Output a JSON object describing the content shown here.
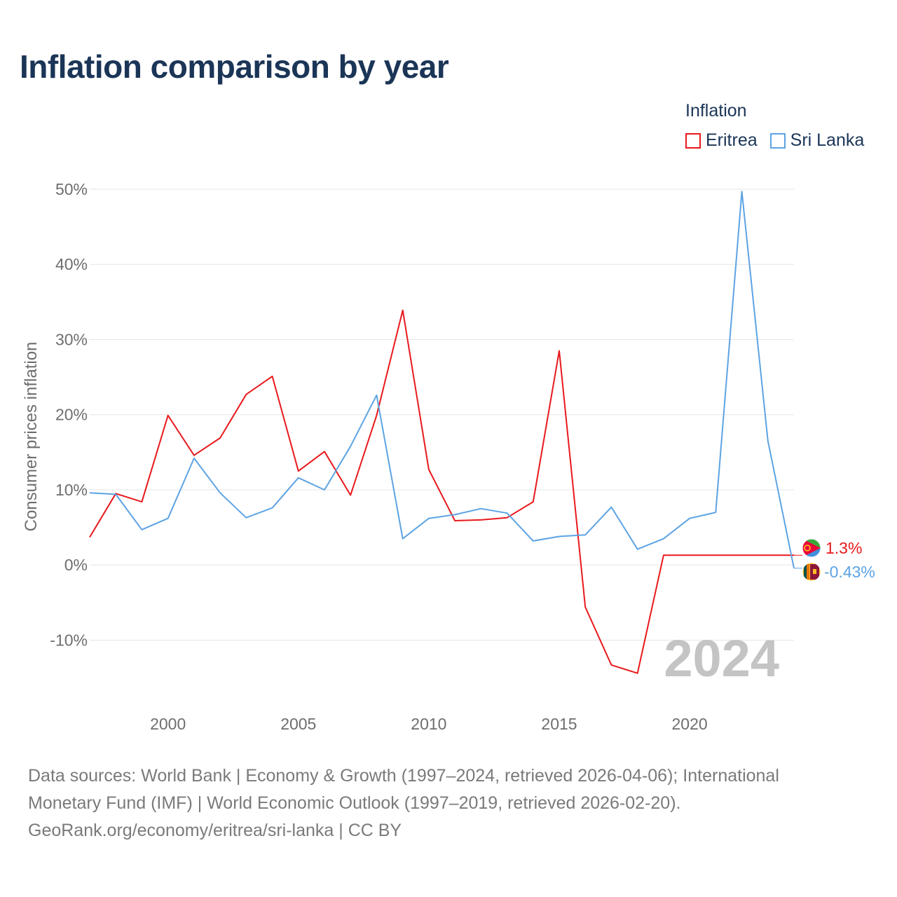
{
  "title": "Inflation comparison by year",
  "legend": {
    "title": "Inflation",
    "items": [
      {
        "name": "Eritrea",
        "color": "#e8191c"
      },
      {
        "name": "Sri Lanka",
        "color": "#5da3e3"
      }
    ]
  },
  "watermark_year": "2024",
  "end_labels": {
    "eritrea": "1.3%",
    "sri_lanka": "-0.43%"
  },
  "flags": {
    "eritrea": "eritrea-flag-icon",
    "sri_lanka": "sri-lanka-flag-icon"
  },
  "footer": {
    "line1": "Data sources: World Bank | Economy & Growth (1997–2024, retrieved 2026-04-06); International",
    "line2": "Monetary Fund (IMF) | World Economic Outlook (1997–2019, retrieved 2026-02-20).",
    "line3": "GeoRank.org/economy/eritrea/sri-lanka | CC BY"
  },
  "chart_data": {
    "type": "line",
    "title": "Inflation comparison by year",
    "xlabel": "",
    "ylabel": "Consumer prices inflation",
    "xlim": [
      1997,
      2024
    ],
    "ylim": [
      -19,
      50
    ],
    "yticks": [
      -10,
      0,
      10,
      20,
      30,
      40,
      50
    ],
    "ytick_labels": [
      "-10%",
      "0%",
      "10%",
      "20%",
      "30%",
      "40%",
      "50%"
    ],
    "xticks": [
      2000,
      2005,
      2010,
      2015,
      2020
    ],
    "xtick_labels": [
      "2000",
      "2005",
      "2010",
      "2015",
      "2020"
    ],
    "grid": true,
    "legend_position": "top-right",
    "series": [
      {
        "name": "Eritrea",
        "color": "#e8191c",
        "x": [
          1997,
          1998,
          1999,
          2000,
          2001,
          2002,
          2003,
          2004,
          2005,
          2006,
          2007,
          2008,
          2009,
          2010,
          2011,
          2012,
          2013,
          2014,
          2015,
          2016,
          2017,
          2018,
          2019,
          2020,
          2021,
          2022,
          2023,
          2024
        ],
        "values": [
          3.7,
          9.5,
          8.4,
          19.9,
          14.6,
          16.9,
          22.7,
          25.1,
          12.5,
          15.1,
          9.3,
          19.9,
          33.9,
          12.7,
          5.9,
          6.0,
          6.3,
          8.4,
          28.5,
          -5.6,
          -13.3,
          -14.4,
          1.3,
          1.3,
          1.3,
          1.3,
          1.3,
          1.3
        ]
      },
      {
        "name": "Sri Lanka",
        "color": "#5da3e3",
        "x": [
          1997,
          1998,
          1999,
          2000,
          2001,
          2002,
          2003,
          2004,
          2005,
          2006,
          2007,
          2008,
          2009,
          2010,
          2011,
          2012,
          2013,
          2014,
          2015,
          2016,
          2017,
          2018,
          2019,
          2020,
          2021,
          2022,
          2023,
          2024
        ],
        "values": [
          9.6,
          9.4,
          4.7,
          6.2,
          14.2,
          9.6,
          6.3,
          7.6,
          11.6,
          10.0,
          15.8,
          22.6,
          3.5,
          6.2,
          6.7,
          7.5,
          6.9,
          3.2,
          3.8,
          4.0,
          7.7,
          2.1,
          3.5,
          6.2,
          7.0,
          49.7,
          16.5,
          -0.43
        ]
      }
    ]
  }
}
